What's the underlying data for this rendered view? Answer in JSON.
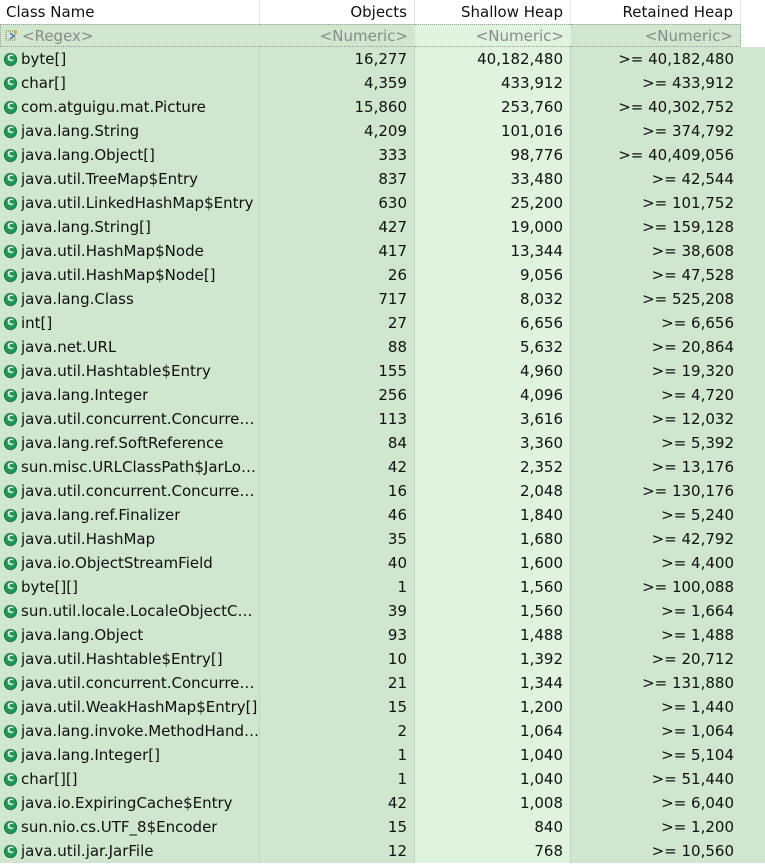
{
  "columns": {
    "class_name": "Class Name",
    "objects": "Objects",
    "shallow_heap": "Shallow Heap",
    "retained_heap": "Retained Heap"
  },
  "filter": {
    "class_name": "<Regex>",
    "objects": "<Numeric>",
    "shallow_heap": "<Numeric>",
    "retained_heap": "<Numeric>"
  },
  "icons": {
    "class": "class-icon",
    "regex": "regex-filter-icon"
  },
  "rows": [
    {
      "name": "byte[]",
      "objects": "16,277",
      "shallow": "40,182,480",
      "retained": ">= 40,182,480"
    },
    {
      "name": "char[]",
      "objects": "4,359",
      "shallow": "433,912",
      "retained": ">= 433,912"
    },
    {
      "name": "com.atguigu.mat.Picture",
      "objects": "15,860",
      "shallow": "253,760",
      "retained": ">= 40,302,752"
    },
    {
      "name": "java.lang.String",
      "objects": "4,209",
      "shallow": "101,016",
      "retained": ">= 374,792"
    },
    {
      "name": "java.lang.Object[]",
      "objects": "333",
      "shallow": "98,776",
      "retained": ">= 40,409,056"
    },
    {
      "name": "java.util.TreeMap$Entry",
      "objects": "837",
      "shallow": "33,480",
      "retained": ">= 42,544"
    },
    {
      "name": "java.util.LinkedHashMap$Entry",
      "objects": "630",
      "shallow": "25,200",
      "retained": ">= 101,752"
    },
    {
      "name": "java.lang.String[]",
      "objects": "427",
      "shallow": "19,000",
      "retained": ">= 159,128"
    },
    {
      "name": "java.util.HashMap$Node",
      "objects": "417",
      "shallow": "13,344",
      "retained": ">= 38,608"
    },
    {
      "name": "java.util.HashMap$Node[]",
      "objects": "26",
      "shallow": "9,056",
      "retained": ">= 47,528"
    },
    {
      "name": "java.lang.Class",
      "objects": "717",
      "shallow": "8,032",
      "retained": ">= 525,208"
    },
    {
      "name": "int[]",
      "objects": "27",
      "shallow": "6,656",
      "retained": ">= 6,656"
    },
    {
      "name": "java.net.URL",
      "objects": "88",
      "shallow": "5,632",
      "retained": ">= 20,864"
    },
    {
      "name": "java.util.Hashtable$Entry",
      "objects": "155",
      "shallow": "4,960",
      "retained": ">= 19,320"
    },
    {
      "name": "java.lang.Integer",
      "objects": "256",
      "shallow": "4,096",
      "retained": ">= 4,720"
    },
    {
      "name": "java.util.concurrent.Concurren...",
      "objects": "113",
      "shallow": "3,616",
      "retained": ">= 12,032"
    },
    {
      "name": "java.lang.ref.SoftReference",
      "objects": "84",
      "shallow": "3,360",
      "retained": ">= 5,392"
    },
    {
      "name": "sun.misc.URLClassPath$JarLoa...",
      "objects": "42",
      "shallow": "2,352",
      "retained": ">= 13,176"
    },
    {
      "name": "java.util.concurrent.Concurren...",
      "objects": "16",
      "shallow": "2,048",
      "retained": ">= 130,176"
    },
    {
      "name": "java.lang.ref.Finalizer",
      "objects": "46",
      "shallow": "1,840",
      "retained": ">= 5,240"
    },
    {
      "name": "java.util.HashMap",
      "objects": "35",
      "shallow": "1,680",
      "retained": ">= 42,792"
    },
    {
      "name": "java.io.ObjectStreamField",
      "objects": "40",
      "shallow": "1,600",
      "retained": ">= 4,400"
    },
    {
      "name": "byte[][]",
      "objects": "1",
      "shallow": "1,560",
      "retained": ">= 100,088"
    },
    {
      "name": "sun.util.locale.LocaleObjectCa...",
      "objects": "39",
      "shallow": "1,560",
      "retained": ">= 1,664"
    },
    {
      "name": "java.lang.Object",
      "objects": "93",
      "shallow": "1,488",
      "retained": ">= 1,488"
    },
    {
      "name": "java.util.Hashtable$Entry[]",
      "objects": "10",
      "shallow": "1,392",
      "retained": ">= 20,712"
    },
    {
      "name": "java.util.concurrent.Concurren...",
      "objects": "21",
      "shallow": "1,344",
      "retained": ">= 131,880"
    },
    {
      "name": "java.util.WeakHashMap$Entry[]",
      "objects": "15",
      "shallow": "1,200",
      "retained": ">= 1,440"
    },
    {
      "name": "java.lang.invoke.MethodHandl...",
      "objects": "2",
      "shallow": "1,064",
      "retained": ">= 1,064"
    },
    {
      "name": "java.lang.Integer[]",
      "objects": "1",
      "shallow": "1,040",
      "retained": ">= 5,104"
    },
    {
      "name": "char[][]",
      "objects": "1",
      "shallow": "1,040",
      "retained": ">= 51,440"
    },
    {
      "name": "java.io.ExpiringCache$Entry",
      "objects": "42",
      "shallow": "1,008",
      "retained": ">= 6,040"
    },
    {
      "name": "sun.nio.cs.UTF_8$Encoder",
      "objects": "15",
      "shallow": "840",
      "retained": ">= 1,200"
    },
    {
      "name": "java.util.jar.JarFile",
      "objects": "12",
      "shallow": "768",
      "retained": ">= 10,560"
    }
  ]
}
